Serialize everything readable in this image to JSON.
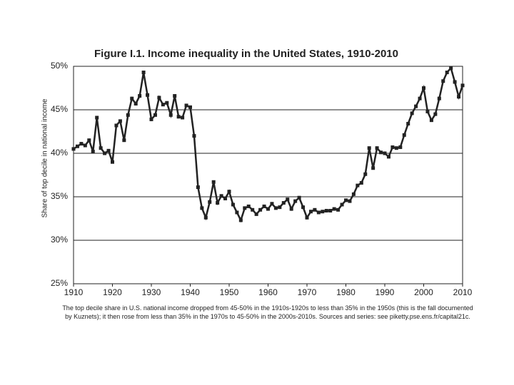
{
  "chart_data": {
    "type": "line",
    "title": "Figure I.1. Income inequality in the United States, 1910-2010",
    "y_label": "Share of top decile in national income",
    "caption": "The top decile share in U.S. national income dropped from 45-50% in the 1910s-1920s to less than 35% in the 1950s (this is the fall documented by Kuznets); it then rose from less than 35% in the 1970s to 45-50% in the 2000s-2010s. Sources and series: see piketty.pse.ens.fr/capital21c.",
    "x": [
      1910,
      1911,
      1912,
      1913,
      1914,
      1915,
      1916,
      1917,
      1918,
      1919,
      1920,
      1921,
      1922,
      1923,
      1924,
      1925,
      1926,
      1927,
      1928,
      1929,
      1930,
      1931,
      1932,
      1933,
      1934,
      1935,
      1936,
      1937,
      1938,
      1939,
      1940,
      1941,
      1942,
      1943,
      1944,
      1945,
      1946,
      1947,
      1948,
      1949,
      1950,
      1951,
      1952,
      1953,
      1954,
      1955,
      1956,
      1957,
      1958,
      1959,
      1960,
      1961,
      1962,
      1963,
      1964,
      1965,
      1966,
      1967,
      1968,
      1969,
      1970,
      1971,
      1972,
      1973,
      1974,
      1975,
      1976,
      1977,
      1978,
      1979,
      1980,
      1981,
      1982,
      1983,
      1984,
      1985,
      1986,
      1987,
      1988,
      1989,
      1990,
      1991,
      1992,
      1993,
      1994,
      1995,
      1996,
      1997,
      1998,
      1999,
      2000,
      2001,
      2002,
      2003,
      2004,
      2005,
      2006,
      2007,
      2008,
      2009,
      2010
    ],
    "values": [
      40.5,
      40.8,
      41.1,
      40.9,
      41.5,
      40.2,
      44.1,
      40.6,
      40.0,
      40.3,
      39.0,
      43.2,
      43.7,
      41.5,
      44.4,
      46.3,
      45.7,
      46.6,
      49.3,
      46.7,
      43.9,
      44.4,
      46.4,
      45.6,
      45.8,
      44.4,
      46.6,
      44.2,
      44.1,
      45.5,
      45.3,
      42.0,
      36.1,
      33.7,
      32.6,
      34.4,
      36.7,
      34.3,
      35.1,
      34.8,
      35.6,
      34.1,
      33.2,
      32.3,
      33.7,
      33.9,
      33.5,
      33.0,
      33.5,
      33.9,
      33.6,
      34.2,
      33.7,
      33.8,
      34.3,
      34.7,
      33.6,
      34.5,
      34.9,
      33.8,
      32.6,
      33.3,
      33.5,
      33.2,
      33.3,
      33.4,
      33.4,
      33.6,
      33.5,
      34.1,
      34.6,
      34.5,
      35.3,
      36.3,
      36.6,
      37.6,
      40.6,
      38.3,
      40.6,
      40.1,
      40.0,
      39.6,
      40.7,
      40.6,
      40.7,
      42.1,
      43.4,
      44.6,
      45.4,
      46.3,
      47.5,
      44.8,
      43.8,
      44.5,
      46.3,
      48.3,
      49.3,
      49.8,
      48.2,
      46.5,
      47.8
    ],
    "color": "#222222",
    "xlim": [
      1910,
      2010
    ],
    "xticks": [
      1910,
      1920,
      1930,
      1940,
      1950,
      1960,
      1970,
      1980,
      1990,
      2000,
      2010
    ],
    "ylim": [
      25,
      50
    ],
    "yticks": [
      {
        "value": 25,
        "label": "25%"
      },
      {
        "value": 30,
        "label": "30%"
      },
      {
        "value": 35,
        "label": "35%"
      },
      {
        "value": 40,
        "label": "40%"
      },
      {
        "value": 45,
        "label": "45%"
      },
      {
        "value": 50,
        "label": "50%"
      }
    ],
    "grid": true
  }
}
